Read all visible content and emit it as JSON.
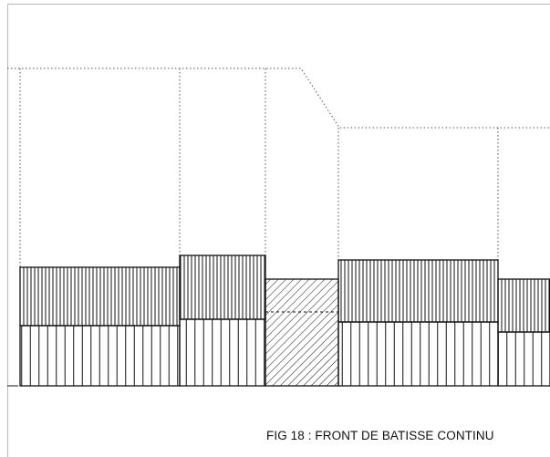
{
  "caption": {
    "text": "FIG 18 : FRONT DE BATISSE CONTINU"
  },
  "colors": {
    "line": "#111111",
    "dotted": "#555555",
    "frame": "#b8b8b8",
    "background": "#ffffff"
  }
}
